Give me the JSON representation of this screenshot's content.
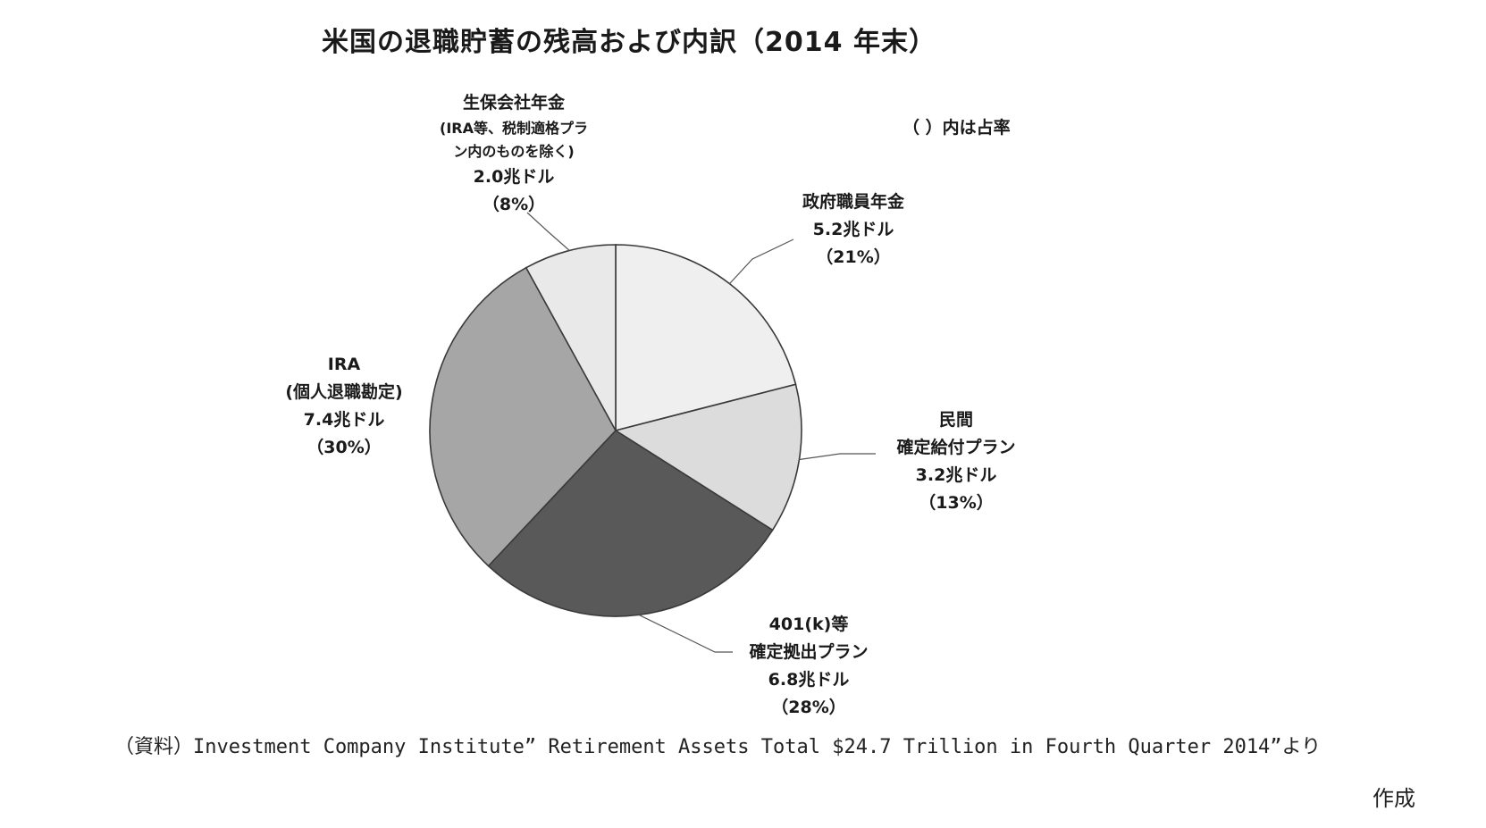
{
  "title": "米国の退職貯蓄の残高および内訳（2014 年末）",
  "note": "（ ）内は占率",
  "source_line1": "（資料）Investment Company Institute” Retirement Assets Total $24.7 Trillion in Fourth Quarter 2014”より",
  "source_line2": "作成",
  "chart_data": {
    "type": "pie",
    "unit": "兆ドル",
    "slices": [
      {
        "label": "政府職員年金",
        "value": 5.2,
        "percent": 21,
        "value_text": "5.2兆ドル",
        "percent_text": "（21%）",
        "color": "#efefef"
      },
      {
        "label": "民間 確定給付プラン",
        "value": 3.2,
        "percent": 13,
        "value_text": "3.2兆ドル",
        "percent_text": "（13%）",
        "color": "#dcdcdc"
      },
      {
        "label": "401(k)等 確定拠出プラン",
        "value": 6.8,
        "percent": 28,
        "value_text": "6.8兆ドル",
        "percent_text": "（28%）",
        "color": "#595959"
      },
      {
        "label": "IRA（個人退職勘定）",
        "value": 7.4,
        "percent": 30,
        "value_text": "7.4兆ドル",
        "percent_text": "（30%）",
        "color": "#a6a6a6"
      },
      {
        "label": "生保会社年金",
        "sublabel": "（IRA等、税制適格プラン内のものを除く）",
        "value": 2.0,
        "percent": 8,
        "value_text": "2.0兆ドル",
        "percent_text": "（8%）",
        "color": "#e9e9e9"
      }
    ],
    "labels": {
      "gov": {
        "l1": "政府職員年金"
      },
      "priv": {
        "l1": "民間",
        "l2": "確定給付プラン"
      },
      "dc": {
        "l1": "401(k)等",
        "l2": "確定拠出プラン"
      },
      "ira": {
        "l1": "IRA",
        "l2": "(個人退職勘定)"
      },
      "ins": {
        "l1": "生保会社年金",
        "s1": "(IRA等、税制適格プラ",
        "s2": "ン内のものを除く)"
      }
    }
  }
}
